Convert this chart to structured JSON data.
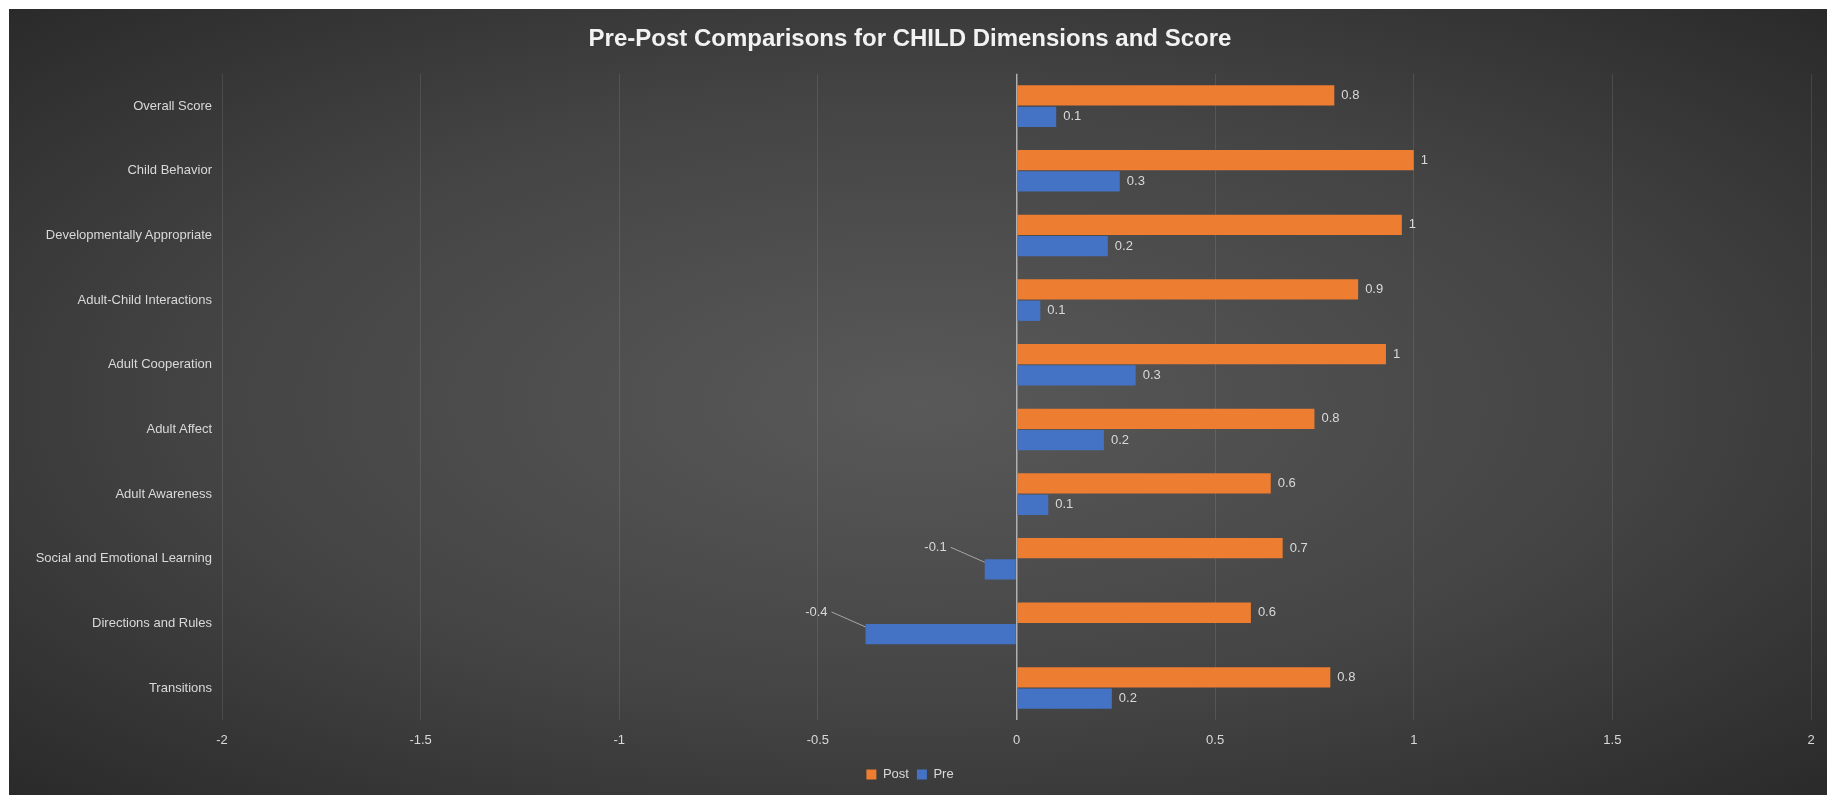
{
  "chart_data": {
    "type": "bar",
    "orientation": "horizontal",
    "title": "Pre-Post Comparisons for CHILD Dimensions and Score",
    "categories": [
      "Overall Score",
      "Child Behavior",
      "Developmentally Appropriate",
      "Adult-Child Interactions",
      "Adult Cooperation",
      "Adult Affect",
      "Adult Awareness",
      "Social and Emotional Learning",
      "Directions and Rules",
      "Transitions"
    ],
    "series": [
      {
        "name": "Post",
        "color": "#ed7d31",
        "values": [
          0.8,
          1.0,
          0.97,
          0.86,
          0.93,
          0.75,
          0.64,
          0.67,
          0.59,
          0.79
        ],
        "value_labels": [
          "0.8",
          "1",
          "1",
          "0.9",
          "1",
          "0.8",
          "0.6",
          "0.7",
          "0.6",
          "0.8"
        ]
      },
      {
        "name": "Pre",
        "color": "#4472c4",
        "values": [
          0.1,
          0.26,
          0.23,
          0.06,
          0.3,
          0.22,
          0.08,
          -0.08,
          -0.38,
          0.24
        ],
        "value_labels": [
          "0.1",
          "0.3",
          "0.2",
          "0.1",
          "0.3",
          "0.2",
          "0.1",
          "-0.1",
          "-0.4",
          "0.2"
        ]
      }
    ],
    "xlim": [
      -2,
      2
    ],
    "xticks": [
      -2,
      -1.5,
      -1,
      -0.5,
      0,
      0.5,
      1,
      1.5,
      2
    ],
    "grid": "x",
    "legend": "bottom"
  }
}
